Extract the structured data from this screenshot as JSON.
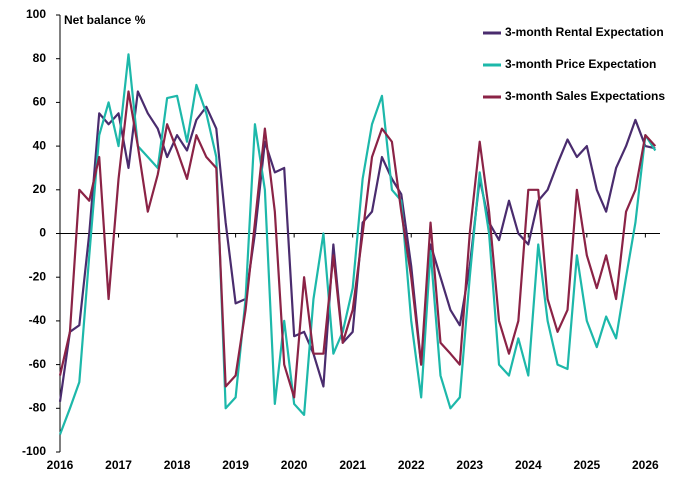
{
  "chart_data": {
    "type": "line",
    "y_label": "Net balance %",
    "x": [
      2016,
      2016.17,
      2016.33,
      2016.5,
      2016.67,
      2016.83,
      2017,
      2017.17,
      2017.33,
      2017.5,
      2017.67,
      2017.83,
      2018,
      2018.17,
      2018.33,
      2018.5,
      2018.67,
      2018.83,
      2019,
      2019.17,
      2019.33,
      2019.5,
      2019.67,
      2019.83,
      2020,
      2020.17,
      2020.33,
      2020.5,
      2020.67,
      2020.83,
      2021,
      2021.17,
      2021.33,
      2021.5,
      2021.67,
      2021.83,
      2022,
      2022.17,
      2022.33,
      2022.5,
      2022.67,
      2022.83,
      2023,
      2023.17,
      2023.33,
      2023.5,
      2023.67,
      2023.83,
      2024,
      2024.17,
      2024.33,
      2024.5,
      2024.67,
      2024.83,
      2025,
      2025.17,
      2025.33,
      2025.5,
      2025.67,
      2025.83,
      2026,
      2026.17
    ],
    "series": [
      {
        "name": "3-month Rental Expectation",
        "color": "#4a2c6e",
        "values": [
          -77,
          -45,
          -42,
          0,
          55,
          50,
          55,
          30,
          65,
          55,
          48,
          35,
          45,
          38,
          52,
          58,
          48,
          5,
          -32,
          -30,
          0,
          42,
          28,
          30,
          -47,
          -45,
          -55,
          -70,
          -5,
          -50,
          -45,
          5,
          10,
          35,
          25,
          18,
          -15,
          -60,
          -5,
          -20,
          -35,
          -42,
          -15,
          25,
          5,
          -3,
          15,
          0,
          -5,
          15,
          20,
          32,
          43,
          35,
          40,
          20,
          10,
          30,
          40,
          52,
          40,
          39
        ]
      },
      {
        "name": "3-month Price Expectation",
        "color": "#1db8aa",
        "values": [
          -92,
          -80,
          -68,
          -10,
          45,
          60,
          40,
          82,
          40,
          35,
          30,
          62,
          63,
          42,
          68,
          55,
          35,
          -80,
          -75,
          -30,
          50,
          20,
          -78,
          -40,
          -78,
          -83,
          -30,
          0,
          -55,
          -45,
          -25,
          25,
          50,
          63,
          20,
          15,
          -40,
          -75,
          -8,
          -65,
          -80,
          -75,
          -20,
          28,
          0,
          -60,
          -65,
          -48,
          -65,
          -5,
          -40,
          -60,
          -62,
          -10,
          -40,
          -52,
          -38,
          -48,
          -20,
          5,
          45,
          38
        ]
      },
      {
        "name": "3-month Sales Expectations",
        "color": "#8b2346",
        "values": [
          -65,
          -45,
          20,
          15,
          35,
          -30,
          25,
          65,
          40,
          10,
          27,
          50,
          38,
          25,
          45,
          35,
          30,
          -70,
          -65,
          -35,
          5,
          48,
          10,
          -60,
          -75,
          -20,
          -55,
          -55,
          -10,
          -50,
          -35,
          0,
          35,
          48,
          42,
          10,
          -20,
          -60,
          5,
          -50,
          -55,
          -60,
          0,
          42,
          10,
          -40,
          -55,
          -40,
          20,
          20,
          -30,
          -45,
          -35,
          20,
          -10,
          -25,
          -10,
          -30,
          10,
          20,
          45,
          40
        ]
      }
    ],
    "xlim": [
      2016,
      2026.25
    ],
    "xticks": [
      2016,
      2017,
      2018,
      2019,
      2020,
      2021,
      2022,
      2023,
      2024,
      2025,
      2026
    ],
    "ylim": [
      -100,
      100
    ],
    "yticks": [
      -100,
      -80,
      -60,
      -40,
      -20,
      0,
      20,
      40,
      60,
      80,
      100
    ],
    "grid": false,
    "legend": "upper right"
  }
}
